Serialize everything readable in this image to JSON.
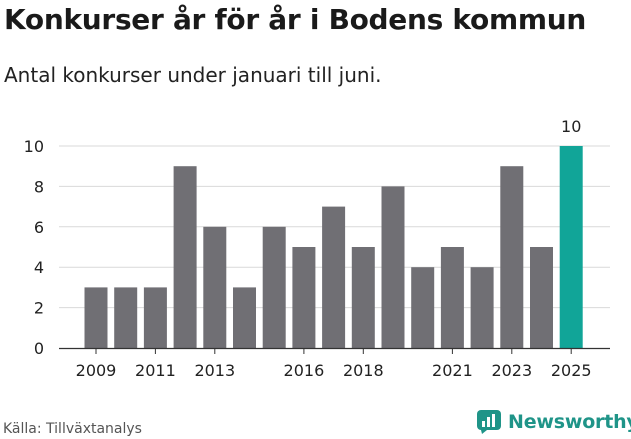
{
  "header": {
    "title": "Konkurser år för år i Bodens kommun",
    "subtitle": "Antal konkurser under januari till juni."
  },
  "footer": {
    "source": "Källa: Tillväxtanalys",
    "brand": "Newsworthy"
  },
  "colors": {
    "bar": "#706f74",
    "highlight": "#11a598",
    "grid": "#d9d9d9",
    "brand": "#1f9488"
  },
  "chart_data": {
    "type": "bar",
    "title": "Konkurser år för år i Bodens kommun",
    "subtitle": "Antal konkurser under januari till juni.",
    "xlabel": "",
    "ylabel": "",
    "categories": [
      "2009",
      "2010",
      "2011",
      "2012",
      "2013",
      "2014",
      "2015",
      "2016",
      "2017",
      "2018",
      "2019",
      "2020",
      "2021",
      "2022",
      "2023",
      "2024",
      "2025"
    ],
    "values": [
      3,
      3,
      3,
      9,
      6,
      3,
      6,
      5,
      7,
      5,
      8,
      4,
      5,
      4,
      9,
      5,
      10
    ],
    "x_tick_labels": [
      "2009",
      "2011",
      "2013",
      "2016",
      "2018",
      "2021",
      "2023",
      "2025"
    ],
    "y_ticks": [
      0,
      2,
      4,
      6,
      8,
      10
    ],
    "ylim": [
      0,
      10
    ],
    "grid": true,
    "highlight_category": "2025",
    "value_labels": [
      {
        "category": "2025",
        "text": "10"
      }
    ]
  }
}
